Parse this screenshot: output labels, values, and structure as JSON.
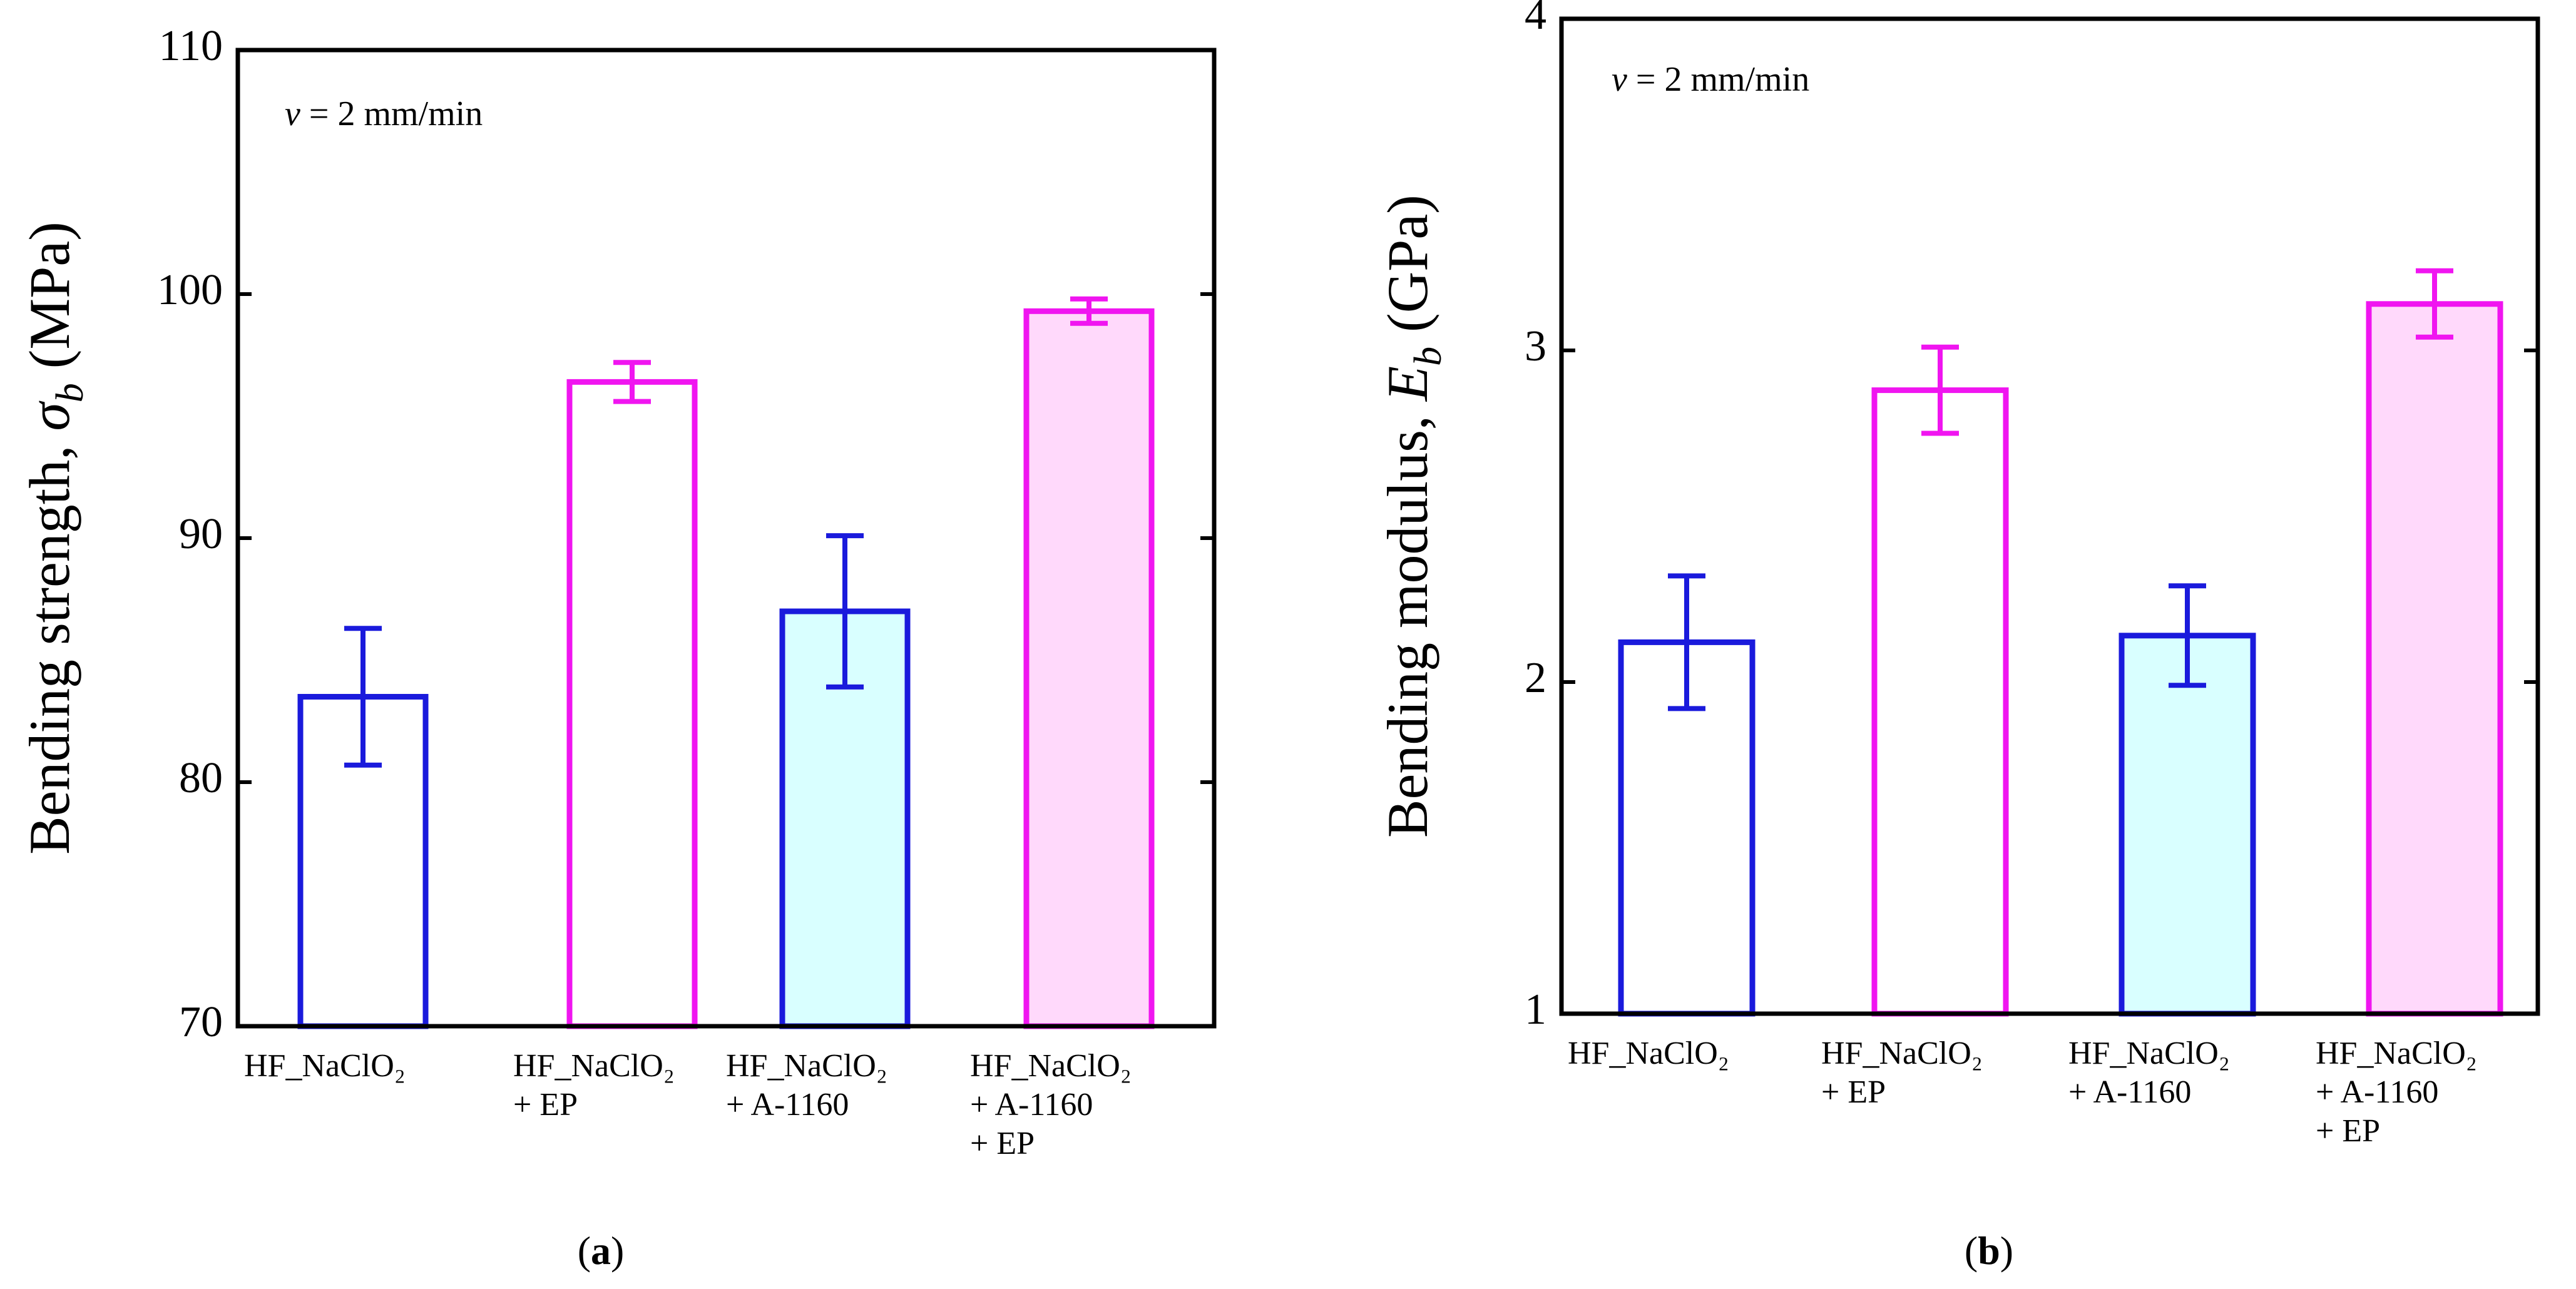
{
  "chart_data": [
    {
      "type": "bar",
      "panel_label": "(a)",
      "annotation": "v = 2 mm/min",
      "annotation_var": "v",
      "annotation_rest": " = 2 mm/min",
      "ylabel": "Bending strength, σb (MPa)",
      "ylabel_main": "Bending strength, ",
      "ylabel_symbol": "σ",
      "ylabel_sub": "b",
      "ylabel_unit": " (MPa)",
      "ylim": [
        70,
        110
      ],
      "yticks": [
        70,
        80,
        90,
        100,
        110
      ],
      "categories": [
        [
          "HF_NaClO₂"
        ],
        [
          "HF_NaClO₂",
          "+ EP"
        ],
        [
          "HF_NaClO₂",
          "+ A-1160"
        ],
        [
          "HF_NaClO₂",
          "+ A-1160",
          "+ EP"
        ]
      ],
      "values": [
        83.5,
        96.4,
        87.0,
        99.3
      ],
      "errors": [
        2.8,
        0.8,
        3.1,
        0.5
      ],
      "edge_colors": [
        "#1a1adc",
        "#f015f0",
        "#1a1adc",
        "#f015f0"
      ],
      "fill_colors": [
        "#ffffff",
        "#ffffff",
        "#d9ffff",
        "#ffd9fb"
      ]
    },
    {
      "type": "bar",
      "panel_label": "(b)",
      "annotation": "v = 2 mm/min",
      "annotation_var": "v",
      "annotation_rest": " = 2 mm/min",
      "ylabel": "Bending modulus, Eb (GPa)",
      "ylabel_main": "Bending modulus, ",
      "ylabel_symbol": "E",
      "ylabel_sub": "b",
      "ylabel_unit": " (GPa)",
      "ylim": [
        1,
        4
      ],
      "yticks": [
        1,
        2,
        3,
        4
      ],
      "categories": [
        [
          "HF_NaClO₂"
        ],
        [
          "HF_NaClO₂",
          "+ EP"
        ],
        [
          "HF_NaClO₂",
          "+ A-1160"
        ],
        [
          "HF_NaClO₂",
          "+ A-1160",
          "+ EP"
        ]
      ],
      "values": [
        2.12,
        2.88,
        2.14,
        3.14
      ],
      "errors": [
        0.2,
        0.13,
        0.15,
        0.1
      ],
      "edge_colors": [
        "#1a1adc",
        "#f015f0",
        "#1a1adc",
        "#f015f0"
      ],
      "fill_colors": [
        "#ffffff",
        "#ffffff",
        "#d9ffff",
        "#ffd9fb"
      ]
    }
  ]
}
